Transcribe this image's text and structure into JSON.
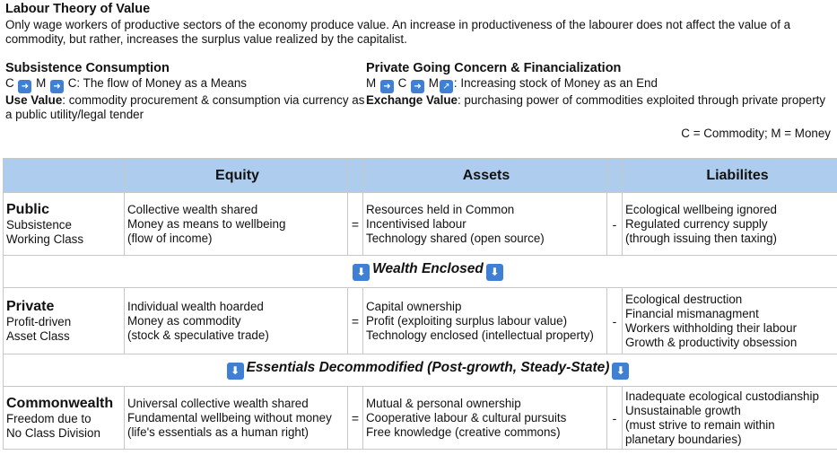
{
  "header": {
    "title": "Labour Theory of Value",
    "intro": "Only wage workers of productive sectors of the economy produce value. An increase in productiveness of the labourer does not affect the value of a commodity, but rather, increases the surplus value realized by the capitalist."
  },
  "left": {
    "heading": "Subsistence Consumption",
    "formula_c1": "C",
    "formula_m": "M",
    "formula_rest": "C: The flow of Money as a Means",
    "use_value_label": "Use Value",
    "use_value_text": ": commodity procurement & consumption via currency as a public utility/legal tender"
  },
  "right": {
    "heading": "Private Going Concern & Financialization",
    "formula_m1": "M",
    "formula_c": "C",
    "formula_m2": "M",
    "formula_rest": ": Increasing stock of Money as an End",
    "exchange_label": "Exchange Value",
    "exchange_text": ": purchasing power of commodities exploited through private property"
  },
  "legend": "C = Commodity; M = Money",
  "icons": {
    "arrow_right": "right-arrow-icon",
    "arrow_up_right": "up-right-arrow-icon",
    "arrow_down": "down-arrow-icon"
  },
  "colors": {
    "header_bg": "#aecdee",
    "arrow_bg": "#3f7fd4"
  },
  "table": {
    "headers": {
      "equity": "Equity",
      "assets": "Assets",
      "liabilities": "Liabilites"
    },
    "public": {
      "name": "Public",
      "sub1": "Subsistence",
      "sub2": "Working Class",
      "equity": [
        "Collective wealth shared",
        "Money as means to wellbeing",
        "(flow of income)"
      ],
      "op1": "=",
      "assets": [
        "Resources held in Common",
        "Incentivised labour",
        "Technology shared (open source)"
      ],
      "op2": "-",
      "liabilities": [
        "Ecological wellbeing ignored",
        "Regulated currency supply",
        "(through issuing then taxing)"
      ]
    },
    "band1": "Wealth Enclosed",
    "private": {
      "name": "Private",
      "sub1": "Profit-driven",
      "sub2": "Asset Class",
      "equity": [
        "Individual wealth hoarded",
        "Money as commodity",
        "(stock & speculative trade)"
      ],
      "op1": "=",
      "assets": [
        "Capital ownership",
        "Profit (exploiting surplus labour value)",
        "Technology enclosed (intellectual property)"
      ],
      "op2": "-",
      "liabilities": [
        "Ecological destruction",
        "Financial mismanagment",
        "Workers withholding their labour",
        "Growth & productivity obsession"
      ]
    },
    "band2": "Essentials Decommodified (Post-growth, Steady-State)",
    "commonwealth": {
      "name": "Commonwealth",
      "sub1": "Freedom due to",
      "sub2": "No Class Division",
      "equity": [
        "Universal collective wealth shared",
        "Fundamental wellbeing without money",
        "(life's essentials as a human right)"
      ],
      "op1": "=",
      "assets": [
        "Mutual & personal ownership",
        "Cooperative labour & cultural pursuits",
        "Free knowledge (creative commons)"
      ],
      "op2": "-",
      "liabilities": [
        "Inadequate ecological custodianship",
        "Unsustainable growth",
        "(must strive to remain within",
        "planetary boundaries)"
      ]
    }
  }
}
